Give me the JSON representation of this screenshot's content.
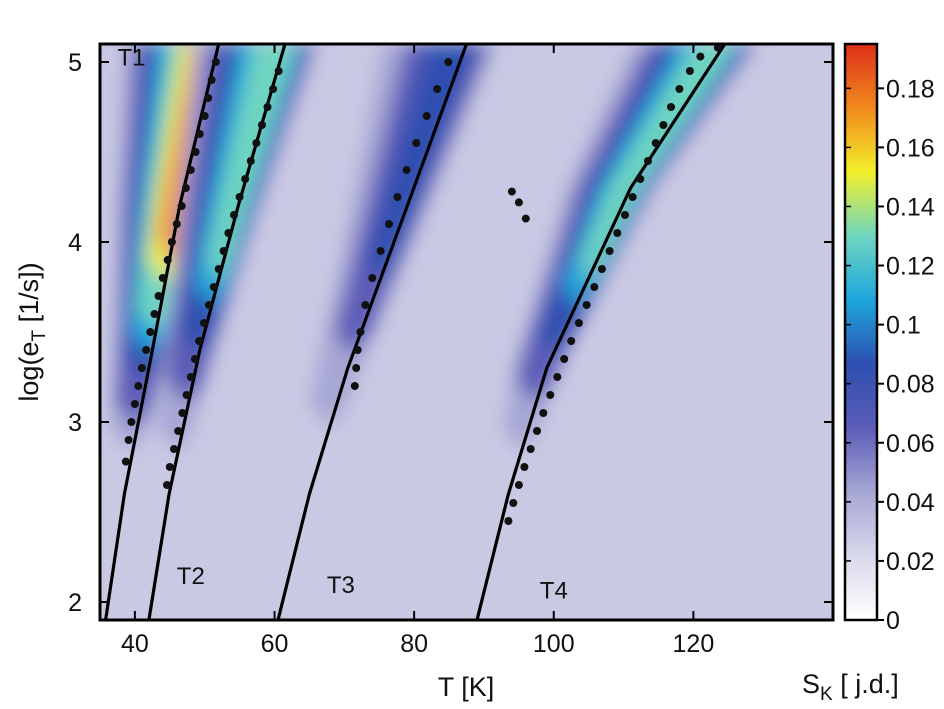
{
  "chart_data": {
    "type": "heatmap",
    "title": "",
    "xlabel": "T   [K]",
    "ylabel_main": "log(e",
    "ylabel_sub": "T",
    "ylabel_tail": "  [1/s])",
    "colorbar_label_main": "S",
    "colorbar_label_sub": "K",
    "colorbar_label_tail": " [ j.d.]",
    "xlim": [
      35,
      140
    ],
    "ylim": [
      1.9,
      5.1
    ],
    "x_ticks": [
      40,
      60,
      80,
      100,
      120
    ],
    "x_tick_labels": [
      "40",
      "60",
      "80",
      "100",
      "120"
    ],
    "y_ticks": [
      2,
      3,
      4,
      5
    ],
    "y_tick_labels": [
      "2",
      "3",
      "4",
      "5"
    ],
    "colorbar": {
      "range": [
        0,
        0.195
      ],
      "ticks": [
        0,
        0.02,
        0.04,
        0.06,
        0.08,
        0.1,
        0.12,
        0.14,
        0.16,
        0.18
      ],
      "tick_labels": [
        "0",
        "0.02",
        "0.04",
        "0.06",
        "0.08",
        "0.1",
        "0.12",
        "0.14",
        "0.16",
        "0.18"
      ],
      "colormap": [
        "#ffffff",
        "#d8d8ec",
        "#a6a6d4",
        "#5c5cb8",
        "#2d4fb0",
        "#1ea6dc",
        "#6fd6c0",
        "#f2ef2a",
        "#f28a1c",
        "#dc2f1a"
      ]
    },
    "grid": false,
    "colormap_name": "white-purple-blue-cyan-yellow-red",
    "series": [
      {
        "name": "T1",
        "line": [
          [
            35.8,
            1.9
          ],
          [
            38.5,
            2.6
          ],
          [
            42.5,
            3.4
          ],
          [
            46.4,
            4.2
          ],
          [
            52.0,
            5.1
          ]
        ],
        "points": [
          [
            38.7,
            2.78
          ],
          [
            39.1,
            2.9
          ],
          [
            39.5,
            3.0
          ],
          [
            40.0,
            3.1
          ],
          [
            40.5,
            3.2
          ],
          [
            41.0,
            3.3
          ],
          [
            41.6,
            3.4
          ],
          [
            42.2,
            3.5
          ],
          [
            42.8,
            3.6
          ],
          [
            43.4,
            3.7
          ],
          [
            44.0,
            3.8
          ],
          [
            44.7,
            3.9
          ],
          [
            45.3,
            4.0
          ],
          [
            46.0,
            4.1
          ],
          [
            46.7,
            4.2
          ],
          [
            47.3,
            4.3
          ],
          [
            48.0,
            4.4
          ],
          [
            48.7,
            4.5
          ],
          [
            49.3,
            4.6
          ],
          [
            50.0,
            4.7
          ],
          [
            50.5,
            4.8
          ],
          [
            51.0,
            4.9
          ],
          [
            51.6,
            5.0
          ]
        ],
        "heat_peak": 0.19
      },
      {
        "name": "T2",
        "line": [
          [
            42.0,
            1.9
          ],
          [
            44.9,
            2.6
          ],
          [
            49.3,
            3.4
          ],
          [
            54.8,
            4.2
          ],
          [
            61.5,
            5.1
          ]
        ],
        "points": [
          [
            44.6,
            2.65
          ],
          [
            45.0,
            2.75
          ],
          [
            45.6,
            2.85
          ],
          [
            46.2,
            2.95
          ],
          [
            46.8,
            3.05
          ],
          [
            47.4,
            3.15
          ],
          [
            48.0,
            3.25
          ],
          [
            48.6,
            3.35
          ],
          [
            49.2,
            3.45
          ],
          [
            49.9,
            3.55
          ],
          [
            50.6,
            3.65
          ],
          [
            51.3,
            3.75
          ],
          [
            52.0,
            3.85
          ],
          [
            52.7,
            3.95
          ],
          [
            53.4,
            4.05
          ],
          [
            54.2,
            4.15
          ],
          [
            55.0,
            4.25
          ],
          [
            55.8,
            4.35
          ],
          [
            56.6,
            4.45
          ],
          [
            57.4,
            4.55
          ],
          [
            58.2,
            4.65
          ],
          [
            59.0,
            4.75
          ],
          [
            59.8,
            4.85
          ],
          [
            60.6,
            4.95
          ]
        ],
        "heat_peak": 0.14
      },
      {
        "name": "T3",
        "line": [
          [
            60.5,
            1.9
          ],
          [
            65.0,
            2.6
          ],
          [
            70.5,
            3.3
          ],
          [
            79.0,
            4.2
          ],
          [
            87.5,
            5.1
          ]
        ],
        "points": [
          [
            71.5,
            3.2
          ],
          [
            71.7,
            3.3
          ],
          [
            71.9,
            3.4
          ],
          [
            72.3,
            3.5
          ],
          [
            73.0,
            3.65
          ],
          [
            74.0,
            3.8
          ],
          [
            75.2,
            3.95
          ],
          [
            76.4,
            4.1
          ],
          [
            77.6,
            4.25
          ],
          [
            78.9,
            4.4
          ],
          [
            80.3,
            4.55
          ],
          [
            81.8,
            4.7
          ],
          [
            83.3,
            4.85
          ],
          [
            84.9,
            5.0
          ]
        ],
        "heat_peak": 0.09
      },
      {
        "name": "T4",
        "line": [
          [
            89.0,
            1.9
          ],
          [
            93.5,
            2.6
          ],
          [
            99.0,
            3.3
          ],
          [
            111.0,
            4.3
          ],
          [
            124.5,
            5.1
          ]
        ],
        "points": [
          [
            93.5,
            2.45
          ],
          [
            94.2,
            2.55
          ],
          [
            95.0,
            2.65
          ],
          [
            95.8,
            2.75
          ],
          [
            96.7,
            2.85
          ],
          [
            97.6,
            2.95
          ],
          [
            98.5,
            3.05
          ],
          [
            99.5,
            3.15
          ],
          [
            100.5,
            3.25
          ],
          [
            101.5,
            3.35
          ],
          [
            102.5,
            3.45
          ],
          [
            103.6,
            3.55
          ],
          [
            104.7,
            3.65
          ],
          [
            105.8,
            3.75
          ],
          [
            106.9,
            3.85
          ],
          [
            108.0,
            3.95
          ],
          [
            109.1,
            4.05
          ],
          [
            110.2,
            4.15
          ],
          [
            111.3,
            4.25
          ],
          [
            112.4,
            4.35
          ],
          [
            113.5,
            4.45
          ],
          [
            114.6,
            4.55
          ],
          [
            115.7,
            4.65
          ],
          [
            116.8,
            4.75
          ],
          [
            118.0,
            4.85
          ],
          [
            119.5,
            4.95
          ],
          [
            121.0,
            5.03
          ],
          [
            123.5,
            5.08
          ]
        ],
        "heat_peak": 0.13
      }
    ],
    "extra_points": [
      [
        94.0,
        4.28
      ],
      [
        95.0,
        4.22
      ],
      [
        96.0,
        4.13
      ]
    ]
  }
}
